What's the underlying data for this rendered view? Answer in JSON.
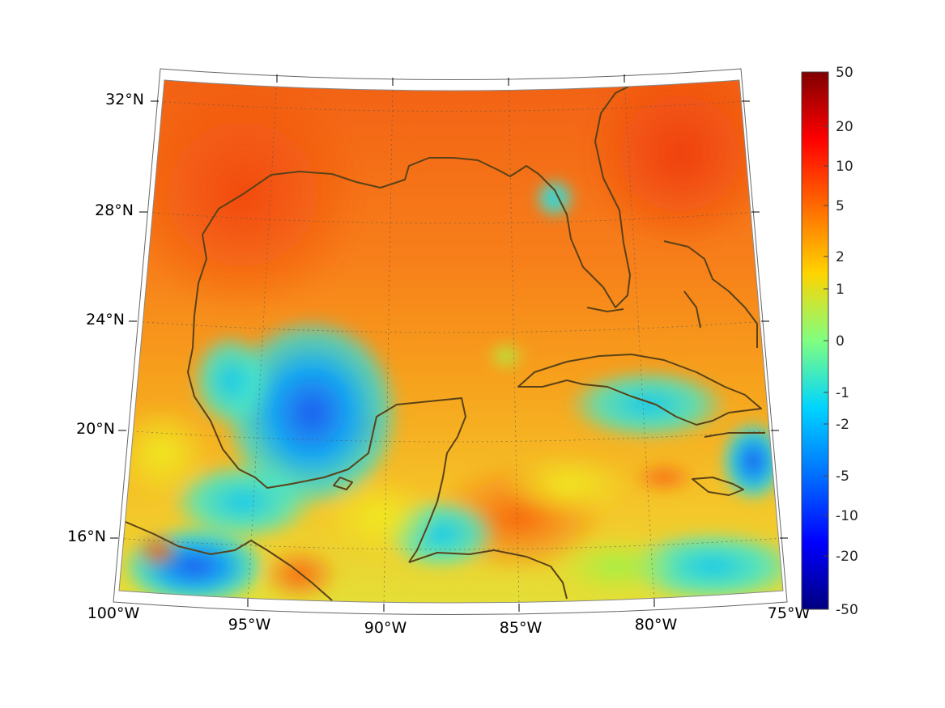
{
  "map": {
    "projection": "conic (Lambert-like)",
    "region": "Gulf of Mexico and Caribbean",
    "grid": "on (dotted)",
    "coastline_color": "#5a4218",
    "lon_labels": [
      "100°W",
      "95°W",
      "90°W",
      "85°W",
      "80°W",
      "75°W"
    ],
    "lat_labels": [
      "32°N",
      "28°N",
      "24°N",
      "20°N",
      "16°N"
    ]
  },
  "colorbar": {
    "colormap": "jet",
    "labels": [
      "50",
      "20",
      "10",
      "5",
      "2",
      "1",
      "0",
      "-1",
      "-2",
      "-5",
      "-10",
      "-20",
      "-50"
    ]
  }
}
